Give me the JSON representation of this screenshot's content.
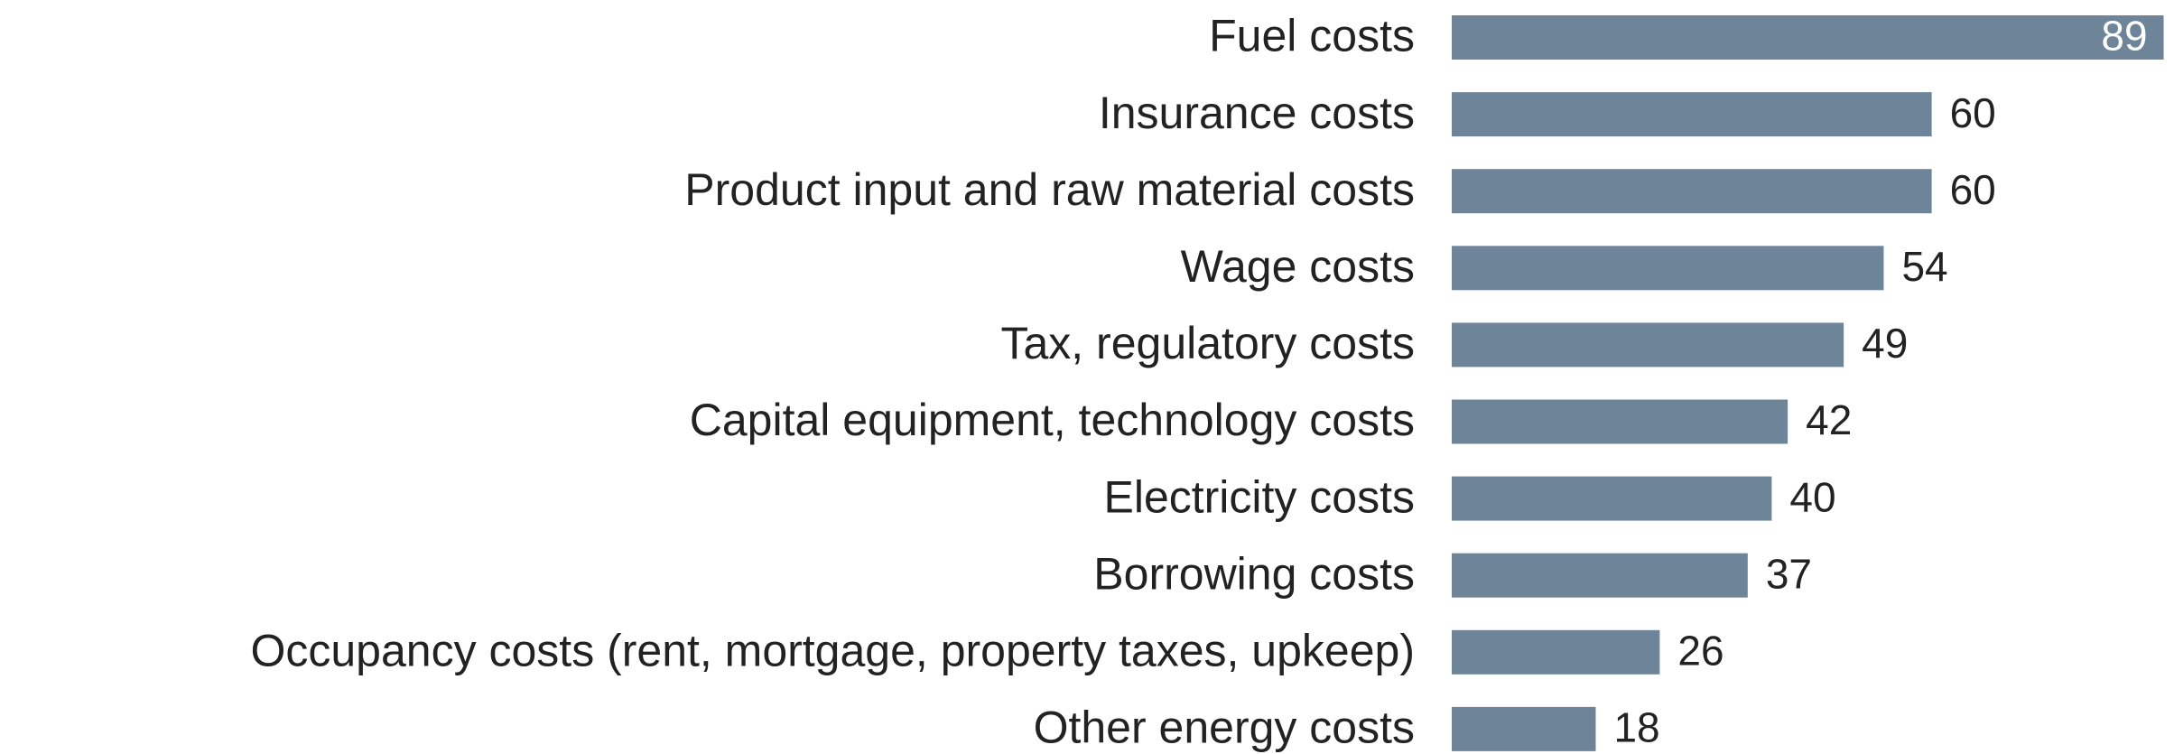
{
  "chart_data": {
    "type": "barh",
    "categories": [
      "Fuel costs",
      "Insurance costs",
      "Product input and raw material costs",
      "Wage costs",
      "Tax, regulatory costs",
      "Capital equipment, technology costs",
      "Electricity costs",
      "Borrowing costs",
      "Occupancy costs (rent, mortgage, property taxes, upkeep)",
      "Other energy costs"
    ],
    "values": [
      89,
      60,
      60,
      54,
      49,
      42,
      40,
      37,
      26,
      18
    ],
    "color": "#6e8499"
  }
}
